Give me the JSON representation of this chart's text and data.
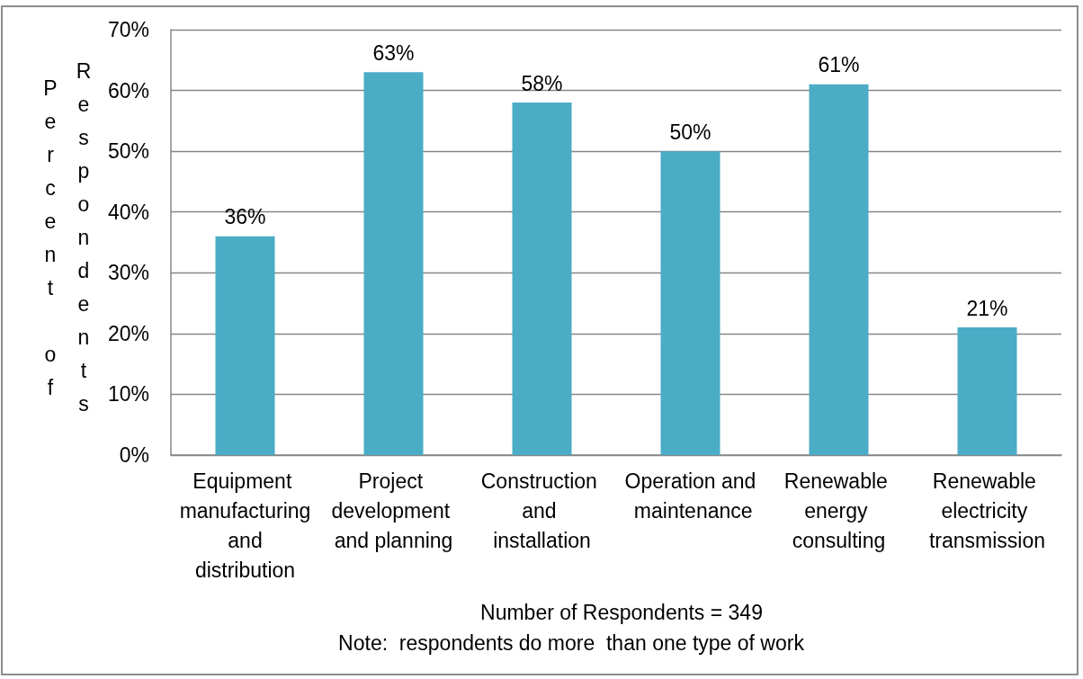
{
  "chart_data": {
    "type": "bar",
    "ylabel": "Percent of Respondents",
    "xlabel": "Number of Respondents = 349",
    "annotations": [
      "Note:  respondents do more  than one type of work"
    ],
    "categories": [
      "Equipment manufacturing and distribution",
      "Project development and planning",
      "Construction and installation",
      "Operation and maintenance",
      "Renewable energy consulting",
      "Renewable electricity transmission"
    ],
    "values": [
      36,
      63,
      58,
      50,
      61,
      21
    ],
    "value_labels": [
      "36%",
      "63%",
      "58%",
      "50%",
      "61%",
      "21%"
    ],
    "color": "#4bacc6",
    "ylim": [
      0,
      70
    ],
    "yticks": [
      {
        "value": 0,
        "label": "0%"
      },
      {
        "value": 10,
        "label": "10%"
      },
      {
        "value": 20,
        "label": "20%"
      },
      {
        "value": 30,
        "label": "30%"
      },
      {
        "value": 40,
        "label": "40%"
      },
      {
        "value": 50,
        "label": "50%"
      },
      {
        "value": 60,
        "label": "60%"
      },
      {
        "value": 70,
        "label": "70%"
      }
    ],
    "grid": "y"
  }
}
